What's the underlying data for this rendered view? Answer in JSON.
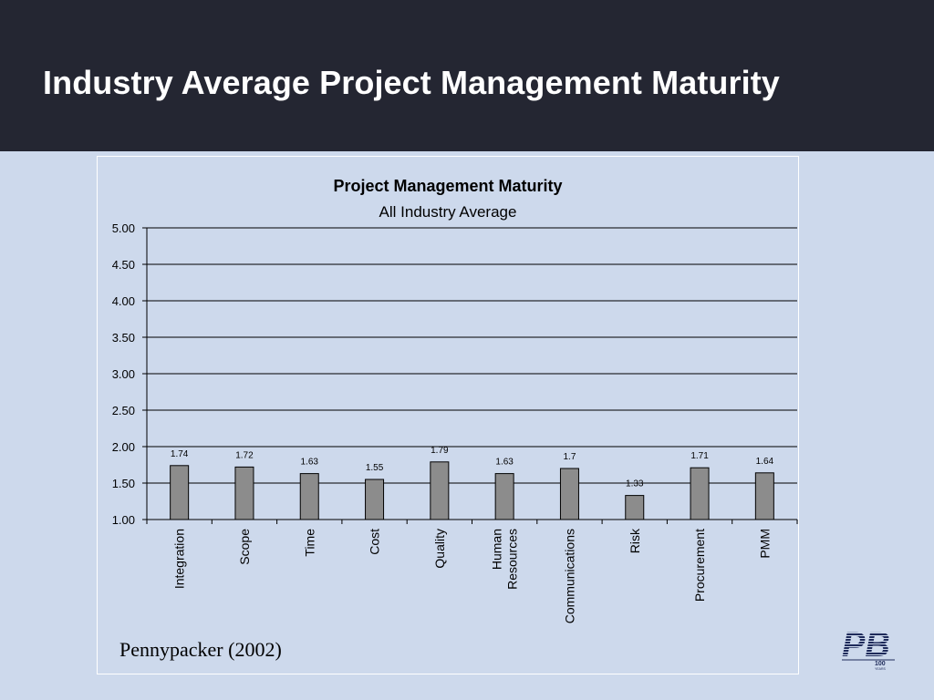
{
  "slide": {
    "title": "Industry Average Project Management Maturity",
    "citation": "Pennypacker (2002)"
  },
  "logo": {
    "letters": "PB",
    "badge": "100",
    "badge_sub": "YEARS"
  },
  "colors": {
    "header_bg": "#242632",
    "slide_bg": "#cdd9ec",
    "bar_fill": "#8c8c8c",
    "grid": "#000000"
  },
  "chart_data": {
    "type": "bar",
    "title": "Project Management Maturity",
    "subtitle": "All Industry Average",
    "xlabel": "",
    "ylabel": "",
    "ylim": [
      1.0,
      5.0
    ],
    "yticks": [
      "1.00",
      "1.50",
      "2.00",
      "2.50",
      "3.00",
      "3.50",
      "4.00",
      "4.50",
      "5.00"
    ],
    "grid": true,
    "legend": "none",
    "categories": [
      "Integration",
      "Scope",
      "Time",
      "Cost",
      "Quality",
      "Human Resources",
      "Communications",
      "Risk",
      "Procurement",
      "PMM"
    ],
    "values": [
      1.74,
      1.72,
      1.63,
      1.55,
      1.79,
      1.63,
      1.7,
      1.33,
      1.71,
      1.64
    ],
    "data_labels": [
      "1.74",
      "1.72",
      "1.63",
      "1.55",
      "1.79",
      "1.63",
      "1.7",
      "1.33",
      "1.71",
      "1.64"
    ]
  }
}
